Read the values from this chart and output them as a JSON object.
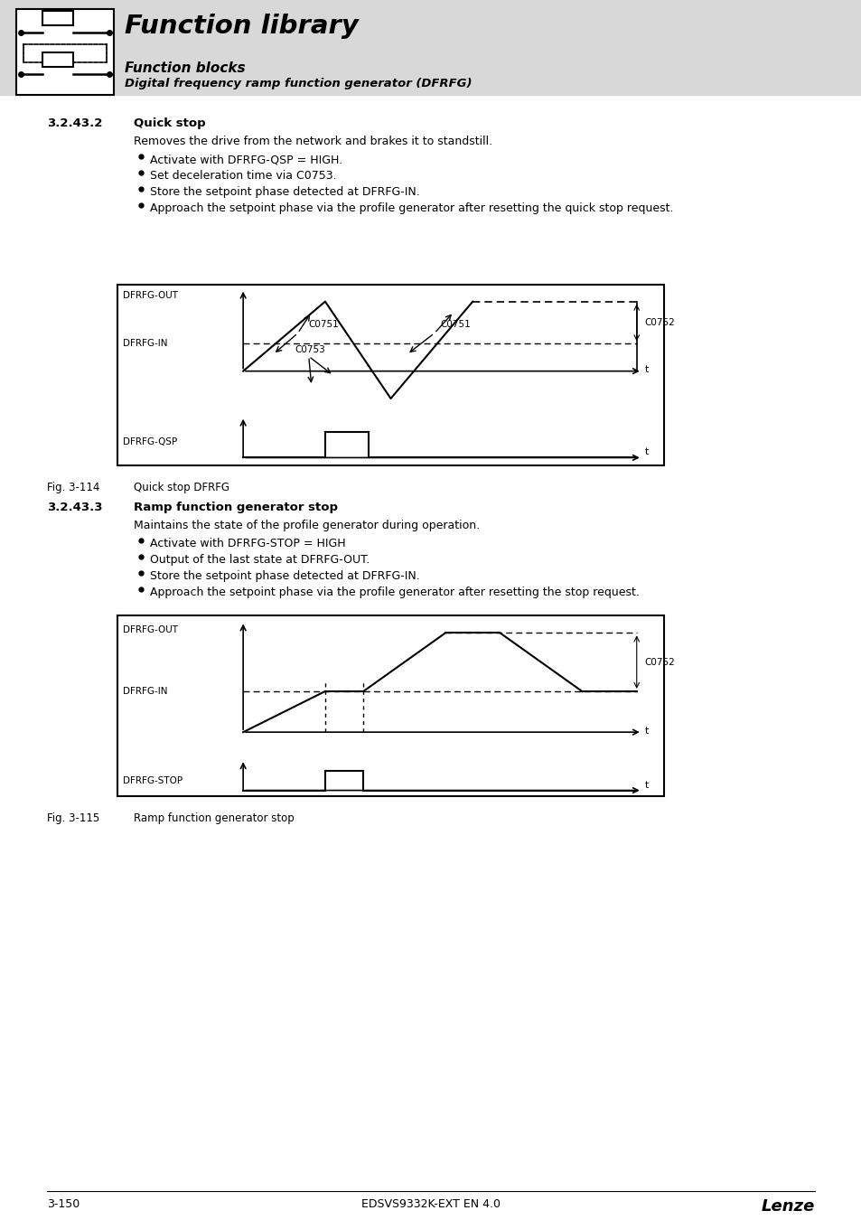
{
  "page_bg": "#ffffff",
  "header_bg": "#d8d8d8",
  "header_title": "Function library",
  "header_sub1": "Function blocks",
  "header_sub2": "Digital frequency ramp function generator (DFRFG)",
  "section1_num": "3.2.43.2",
  "section1_title": "Quick stop",
  "section1_desc": "Removes the drive from the network and brakes it to standstill.",
  "section1_bullets": [
    "Activate with DFRFG-QSP = HIGH.",
    "Set deceleration time via C0753.",
    "Store the setpoint phase detected at DFRFG-IN.",
    "Approach the setpoint phase via the profile generator after resetting the quick stop request."
  ],
  "fig1_label": "Fig. 3-114",
  "fig1_caption": "Quick stop DFRFG",
  "section2_num": "3.2.43.3",
  "section2_title": "Ramp function generator stop",
  "section2_desc": "Maintains the state of the profile generator during operation.",
  "section2_bullets": [
    "Activate with DFRFG-STOP = HIGH",
    "Output of the last state at DFRFG-OUT.",
    "Store the setpoint phase detected at DFRFG-IN.",
    "Approach the setpoint phase via the profile generator after resetting the stop request."
  ],
  "fig2_label": "Fig. 3-115",
  "fig2_caption": "Ramp function generator stop",
  "footer_left": "3-150",
  "footer_center": "EDSVS9332K-EXT EN 4.0",
  "footer_right": "Lenze"
}
